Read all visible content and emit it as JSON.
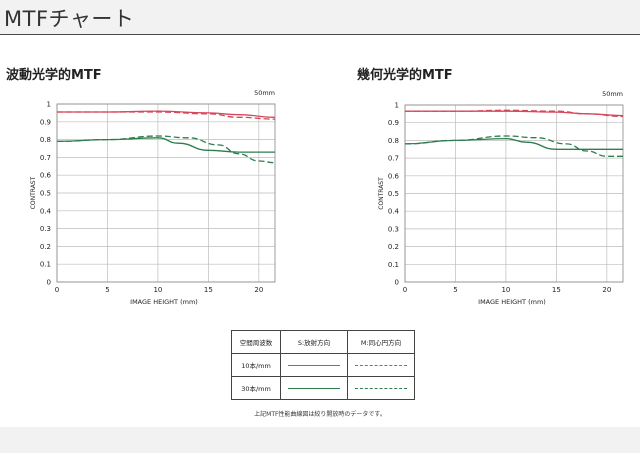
{
  "header": {
    "title": "MTFチャート"
  },
  "charts": [
    {
      "title": "波動光学的MTF"
    },
    {
      "title": "幾何光学的MTF"
    }
  ],
  "chart_data": [
    {
      "type": "line",
      "title": "波動光学的MTF",
      "annotation": "50mm",
      "xlabel": "IMAGE HEIGHT (mm)",
      "ylabel": "CONTRAST",
      "xlim": [
        0,
        21.6
      ],
      "ylim": [
        0,
        1
      ],
      "xticks": [
        0,
        5,
        10,
        15,
        20
      ],
      "yticks": [
        0,
        0.1,
        0.2,
        0.3,
        0.4,
        0.5,
        0.6,
        0.7,
        0.8,
        0.9,
        1
      ],
      "grid": true,
      "series": [
        {
          "name": "10本/mm S:放射方向",
          "color": "#d6475c",
          "style": "solid",
          "x": [
            0,
            5,
            10,
            15,
            18,
            21.6
          ],
          "y": [
            0.955,
            0.955,
            0.96,
            0.95,
            0.94,
            0.925
          ]
        },
        {
          "name": "10本/mm M:同心円方向",
          "color": "#d6475c",
          "style": "dashed",
          "x": [
            0,
            5,
            10,
            15,
            18,
            21.6
          ],
          "y": [
            0.955,
            0.955,
            0.955,
            0.945,
            0.925,
            0.915
          ]
        },
        {
          "name": "30本/mm S:放射方向",
          "color": "#2e7d4f",
          "style": "solid",
          "x": [
            0,
            5,
            10,
            12,
            15,
            18,
            21.6
          ],
          "y": [
            0.79,
            0.8,
            0.81,
            0.78,
            0.74,
            0.73,
            0.73
          ]
        },
        {
          "name": "30本/mm M:同心円方向",
          "color": "#2e7d4f",
          "style": "dashed",
          "x": [
            0,
            5,
            10,
            13,
            16,
            18,
            20,
            21.6
          ],
          "y": [
            0.79,
            0.8,
            0.82,
            0.81,
            0.77,
            0.72,
            0.68,
            0.67
          ]
        }
      ]
    },
    {
      "type": "line",
      "title": "幾何光学的MTF",
      "annotation": "50mm",
      "xlabel": "IMAGE HEIGHT (mm)",
      "ylabel": "CONTRAST",
      "xlim": [
        0,
        21.6
      ],
      "ylim": [
        0,
        1
      ],
      "xticks": [
        0,
        5,
        10,
        15,
        20
      ],
      "yticks": [
        0,
        0.1,
        0.2,
        0.3,
        0.4,
        0.5,
        0.6,
        0.7,
        0.8,
        0.9,
        1
      ],
      "grid": true,
      "series": [
        {
          "name": "10本/mm S:放射方向",
          "color": "#d6475c",
          "style": "solid",
          "x": [
            0,
            5,
            10,
            15,
            18,
            21.6
          ],
          "y": [
            0.965,
            0.965,
            0.965,
            0.96,
            0.95,
            0.94
          ]
        },
        {
          "name": "10本/mm M:同心円方向",
          "color": "#d6475c",
          "style": "dashed",
          "x": [
            0,
            5,
            10,
            15,
            18,
            21.6
          ],
          "y": [
            0.965,
            0.965,
            0.97,
            0.965,
            0.95,
            0.935
          ]
        },
        {
          "name": "30本/mm S:放射方向",
          "color": "#2e7d4f",
          "style": "solid",
          "x": [
            0,
            5,
            10,
            12,
            15,
            18,
            21.6
          ],
          "y": [
            0.78,
            0.8,
            0.81,
            0.79,
            0.75,
            0.75,
            0.75
          ]
        },
        {
          "name": "30本/mm M:同心円方向",
          "color": "#2e7d4f",
          "style": "dashed",
          "x": [
            0,
            5,
            10,
            13,
            16,
            18,
            20,
            21.6
          ],
          "y": [
            0.78,
            0.8,
            0.825,
            0.815,
            0.78,
            0.74,
            0.71,
            0.71
          ]
        }
      ]
    }
  ],
  "legend": {
    "header": {
      "freq": "空間周波数",
      "s": "S:放射方向",
      "m": "M:同心円方向"
    },
    "rows": [
      {
        "freq": "10本/mm",
        "color": "#d6475c"
      },
      {
        "freq": "30本/mm",
        "color": "#2e7d4f"
      }
    ]
  },
  "footnote": "上記MTF性能曲線図は絞り開放時のデータです。"
}
